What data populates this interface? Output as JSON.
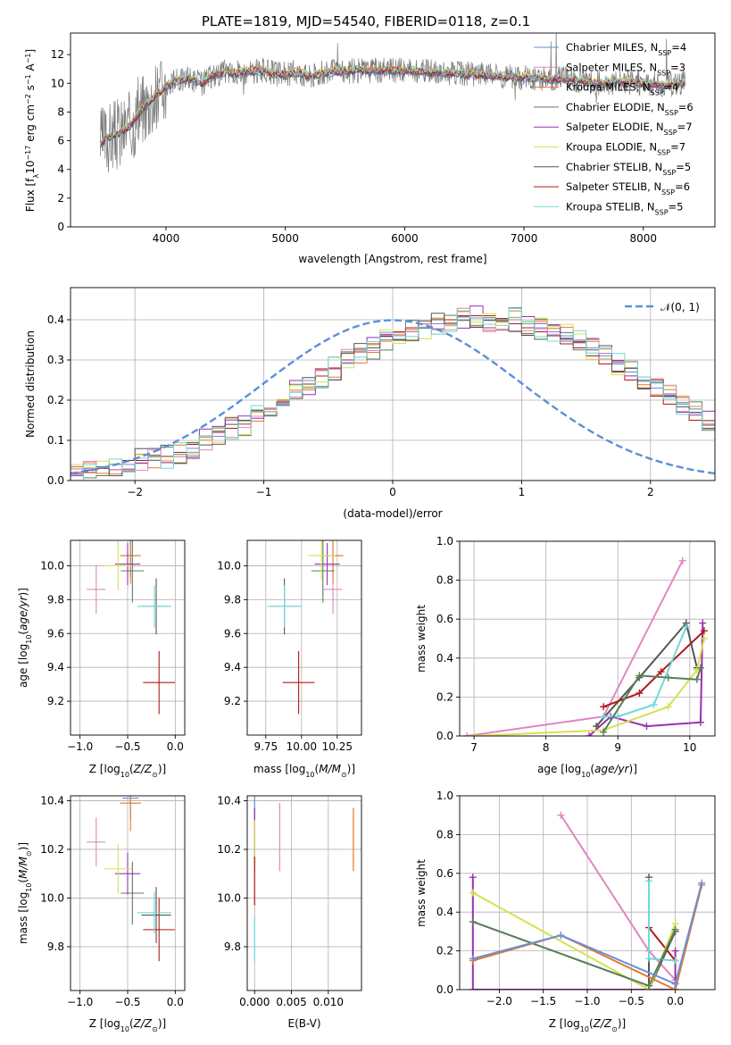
{
  "chart_data": [
    {
      "type": "line",
      "title": "PLATE=1819, MJD=54540, FIBERID=0118, z=0.1",
      "xlabel": "wavelength [Angstrom, rest frame]",
      "ylabel": "Flux [f_λ 10^-17 erg cm^-2 s^-1 A^-1]",
      "xlim": [
        3200,
        8600
      ],
      "ylim": [
        0,
        13.5
      ],
      "xticks": [
        4000,
        5000,
        6000,
        7000,
        8000
      ],
      "yticks": [
        0,
        2,
        4,
        6,
        8,
        10,
        12
      ],
      "legend_position": "right",
      "series": [
        {
          "name": "Chabrier MILES, N_SSP=4",
          "color": "#6a8fd8"
        },
        {
          "name": "Salpeter MILES, N_SSP=3",
          "color": "#e088c0"
        },
        {
          "name": "Kroupa MILES, N_SSP=4",
          "color": "#e07a2a"
        },
        {
          "name": "Chabrier ELODIE, N_SSP=6",
          "color": "#5a7d5a"
        },
        {
          "name": "Salpeter ELODIE, N_SSP=7",
          "color": "#9b2fb0"
        },
        {
          "name": "Kroupa ELODIE, N_SSP=7",
          "color": "#d8e050"
        },
        {
          "name": "Chabrier STELIB, N_SSP=5",
          "color": "#555555"
        },
        {
          "name": "Salpeter STELIB, N_SSP=6",
          "color": "#b01818"
        },
        {
          "name": "Kroupa STELIB, N_SSP=5",
          "color": "#70d8d8"
        }
      ],
      "spectrum_model": [
        [
          3450,
          5.8
        ],
        [
          3500,
          6.2
        ],
        [
          3600,
          6.5
        ],
        [
          3700,
          7.0
        ],
        [
          3800,
          8.3
        ],
        [
          3900,
          9.0
        ],
        [
          4000,
          9.8
        ],
        [
          4100,
          10.2
        ],
        [
          4200,
          10.4
        ],
        [
          4300,
          10.0
        ],
        [
          4400,
          10.6
        ],
        [
          4500,
          10.8
        ],
        [
          4600,
          10.7
        ],
        [
          4700,
          10.8
        ],
        [
          4800,
          10.9
        ],
        [
          4900,
          10.7
        ],
        [
          5000,
          10.6
        ],
        [
          5100,
          10.8
        ],
        [
          5200,
          10.5
        ],
        [
          5300,
          10.7
        ],
        [
          5400,
          10.8
        ],
        [
          5500,
          10.8
        ],
        [
          5600,
          10.9
        ],
        [
          5800,
          10.9
        ],
        [
          6000,
          10.9
        ],
        [
          6200,
          10.8
        ],
        [
          6400,
          10.7
        ],
        [
          6600,
          10.6
        ],
        [
          6800,
          10.5
        ],
        [
          7000,
          10.4
        ],
        [
          7200,
          10.3
        ],
        [
          7400,
          10.3
        ],
        [
          7600,
          10.0
        ],
        [
          7800,
          10.1
        ],
        [
          8000,
          10.0
        ],
        [
          8200,
          9.9
        ],
        [
          8350,
          10.0
        ]
      ]
    },
    {
      "type": "bar",
      "xlabel": "(data-model)/error",
      "ylabel": "Normed distribution",
      "xlim": [
        -2.5,
        2.5
      ],
      "ylim": [
        0,
        0.48
      ],
      "xticks": [
        -2,
        -1,
        0,
        1,
        2
      ],
      "yticks": [
        0.0,
        0.1,
        0.2,
        0.3,
        0.4
      ],
      "grid": true,
      "legend_position": "top-right",
      "legend": "𝒩(0, 1)",
      "reference_curve": "normal(0,1)",
      "bin_width": 0.1,
      "series": [
        {
          "color": "#6a8fd8",
          "values": [
            0.02,
            0.02,
            0.03,
            0.04,
            0.04,
            0.05,
            0.05,
            0.06,
            0.07,
            0.08,
            0.1,
            0.11,
            0.13,
            0.14,
            0.16,
            0.18,
            0.2,
            0.22,
            0.24,
            0.26,
            0.28,
            0.3,
            0.32,
            0.33,
            0.35,
            0.36,
            0.37,
            0.38,
            0.39,
            0.4,
            0.4,
            0.41,
            0.4,
            0.4,
            0.4,
            0.39,
            0.38,
            0.37,
            0.36,
            0.35,
            0.33,
            0.31,
            0.29,
            0.27,
            0.25,
            0.23,
            0.21,
            0.19,
            0.17,
            0.15
          ]
        },
        {
          "color": "#b01818",
          "values": [
            0.02,
            0.02,
            0.03,
            0.04,
            0.05,
            0.05,
            0.06,
            0.06,
            0.07,
            0.09,
            0.1,
            0.12,
            0.13,
            0.15,
            0.17,
            0.18,
            0.2,
            0.22,
            0.24,
            0.26,
            0.28,
            0.3,
            0.32,
            0.34,
            0.36,
            0.37,
            0.38,
            0.39,
            0.4,
            0.4,
            0.41,
            0.41,
            0.41,
            0.4,
            0.39,
            0.38,
            0.37,
            0.36,
            0.34,
            0.33,
            0.31,
            0.29,
            0.27,
            0.25,
            0.23,
            0.21,
            0.19,
            0.17,
            0.15,
            0.13
          ]
        }
      ]
    },
    {
      "type": "scatter",
      "xlabel": "Z [log10(Z/Z⊙)]",
      "ylabel": "age  [log10(age/yr)]",
      "xlim": [
        -1.1,
        0.1
      ],
      "ylim": [
        9.0,
        10.15
      ],
      "xticks": [
        -1.0,
        -0.5,
        0.0
      ],
      "yticks": [
        9.2,
        9.4,
        9.6,
        9.8,
        10.0
      ],
      "grid": true,
      "points": [
        {
          "color": "#6a8fd8",
          "x": -0.47,
          "y": 10.06
        },
        {
          "color": "#e088c0",
          "x": -0.83,
          "y": 9.86
        },
        {
          "color": "#e07a2a",
          "x": -0.47,
          "y": 10.06
        },
        {
          "color": "#5a7d5a",
          "x": -0.45,
          "y": 9.97
        },
        {
          "color": "#9b2fb0",
          "x": -0.5,
          "y": 10.01
        },
        {
          "color": "#d8e050",
          "x": -0.6,
          "y": 10.0
        },
        {
          "color": "#555555",
          "x": -0.2,
          "y": 9.76
        },
        {
          "color": "#b01818",
          "x": -0.17,
          "y": 9.31
        },
        {
          "color": "#70d8d8",
          "x": -0.22,
          "y": 9.76
        }
      ]
    },
    {
      "type": "scatter",
      "xlabel": "mass [log10(M/M⊙)]",
      "xlim": [
        9.62,
        10.42
      ],
      "ylim": [
        9.0,
        10.15
      ],
      "xticks": [
        9.75,
        10.0,
        10.25
      ],
      "yticks": [
        9.2,
        9.4,
        9.6,
        9.8,
        10.0
      ],
      "grid": true,
      "points": [
        {
          "color": "#6a8fd8",
          "x": 10.22,
          "y": 10.06
        },
        {
          "color": "#e088c0",
          "x": 10.22,
          "y": 9.86
        },
        {
          "color": "#e07a2a",
          "x": 10.22,
          "y": 10.06
        },
        {
          "color": "#5a7d5a",
          "x": 10.15,
          "y": 9.97
        },
        {
          "color": "#9b2fb0",
          "x": 10.18,
          "y": 10.01
        },
        {
          "color": "#d8e050",
          "x": 10.14,
          "y": 10.06
        },
        {
          "color": "#555555",
          "x": 9.88,
          "y": 9.76
        },
        {
          "color": "#b01818",
          "x": 9.98,
          "y": 9.31
        },
        {
          "color": "#70d8d8",
          "x": 9.88,
          "y": 9.76
        }
      ]
    },
    {
      "type": "line",
      "xlabel": "age  [log10(age/yr)]",
      "ylabel": "mass weight",
      "xlim": [
        6.8,
        10.35
      ],
      "ylim": [
        0,
        1.0
      ],
      "xticks": [
        7,
        8,
        9,
        10
      ],
      "yticks": [
        0.0,
        0.2,
        0.4,
        0.6,
        0.8,
        1.0
      ],
      "grid": true,
      "series": [
        {
          "color": "#e088c0",
          "points": [
            [
              6.9,
              0.0
            ],
            [
              8.8,
              0.1
            ],
            [
              9.9,
              0.9
            ]
          ]
        },
        {
          "color": "#555555",
          "points": [
            [
              8.7,
              0.05
            ],
            [
              9.3,
              0.3
            ],
            [
              9.95,
              0.58
            ],
            [
              10.1,
              0.35
            ]
          ]
        },
        {
          "color": "#9b2fb0",
          "points": [
            [
              8.6,
              0.0
            ],
            [
              8.9,
              0.1
            ],
            [
              9.4,
              0.05
            ],
            [
              10.15,
              0.07
            ],
            [
              10.18,
              0.58
            ]
          ]
        },
        {
          "color": "#b01818",
          "points": [
            [
              8.8,
              0.15
            ],
            [
              9.3,
              0.22
            ],
            [
              9.6,
              0.33
            ],
            [
              10.2,
              0.54
            ]
          ]
        },
        {
          "color": "#70d8d8",
          "points": [
            [
              8.8,
              0.1
            ],
            [
              9.0,
              0.1
            ],
            [
              9.5,
              0.16
            ],
            [
              9.95,
              0.56
            ]
          ]
        },
        {
          "color": "#d8e050",
          "points": [
            [
              7.0,
              0.0
            ],
            [
              8.8,
              0.03
            ],
            [
              9.7,
              0.15
            ],
            [
              10.1,
              0.34
            ],
            [
              10.2,
              0.5
            ]
          ]
        },
        {
          "color": "#5a7d5a",
          "points": [
            [
              8.8,
              0.02
            ],
            [
              9.3,
              0.31
            ],
            [
              9.7,
              0.3
            ],
            [
              10.1,
              0.29
            ],
            [
              10.15,
              0.35
            ]
          ]
        }
      ]
    },
    {
      "type": "scatter",
      "xlabel": "Z [log10(Z/Z⊙)]",
      "ylabel": "mass [log10(M/M⊙)]",
      "xlim": [
        -1.1,
        0.1
      ],
      "ylim": [
        9.62,
        10.42
      ],
      "xticks": [
        -1.0,
        -0.5,
        0.0
      ],
      "yticks": [
        9.8,
        10.0,
        10.2,
        10.4
      ],
      "grid": true,
      "points": [
        {
          "color": "#6a8fd8",
          "x": -0.47,
          "y": 10.41
        },
        {
          "color": "#e088c0",
          "x": -0.83,
          "y": 10.23
        },
        {
          "color": "#e07a2a",
          "x": -0.47,
          "y": 10.39
        },
        {
          "color": "#5a7d5a",
          "x": -0.45,
          "y": 10.02
        },
        {
          "color": "#9b2fb0",
          "x": -0.5,
          "y": 10.1
        },
        {
          "color": "#d8e050",
          "x": -0.6,
          "y": 10.12
        },
        {
          "color": "#555555",
          "x": -0.2,
          "y": 9.93
        },
        {
          "color": "#b01818",
          "x": -0.17,
          "y": 9.87
        },
        {
          "color": "#70d8d8",
          "x": -0.22,
          "y": 9.94
        }
      ]
    },
    {
      "type": "scatter",
      "xlabel": "E(B-V)",
      "xlim": [
        -0.001,
        0.0145
      ],
      "ylim": [
        9.62,
        10.42
      ],
      "xticks": [
        0.0,
        0.005,
        0.01
      ],
      "yticks": [
        9.8,
        10.0,
        10.2,
        10.4
      ],
      "grid": true,
      "points": [
        {
          "color": "#6a8fd8",
          "x": 0.0,
          "y": 10.3
        },
        {
          "color": "#e088c0",
          "x": 0.0034,
          "y": 10.27
        },
        {
          "color": "#e07a2a",
          "x": 0.0134,
          "y": 10.25
        },
        {
          "color": "#9b2fb0",
          "x": 0.0,
          "y": 10.25
        },
        {
          "color": "#d8e050",
          "x": 0.0,
          "y": 10.2
        },
        {
          "color": "#b01818",
          "x": 0.0,
          "y": 10.05
        },
        {
          "color": "#70d8d8",
          "x": 0.0,
          "y": 9.8
        }
      ]
    },
    {
      "type": "line",
      "xlabel": "Z [log10(Z/Z⊙)]",
      "ylabel": "mass weight",
      "xlim": [
        -2.45,
        0.45
      ],
      "ylim": [
        0,
        1.0
      ],
      "xticks": [
        -2.0,
        -1.5,
        -1.0,
        -0.5,
        0.0
      ],
      "yticks": [
        0.0,
        0.2,
        0.4,
        0.6,
        0.8,
        1.0
      ],
      "grid": true,
      "series": [
        {
          "color": "#e088c0",
          "points": [
            [
              -1.3,
              0.9
            ],
            [
              -0.3,
              0.2
            ],
            [
              0.0,
              0.05
            ]
          ]
        },
        {
          "color": "#555555",
          "points": [
            [
              -0.3,
              0.58
            ],
            [
              -0.3,
              0.0
            ],
            [
              0.0,
              0.3
            ]
          ]
        },
        {
          "color": "#9b2fb0",
          "points": [
            [
              -2.3,
              0.58
            ],
            [
              -2.3,
              0.0
            ],
            [
              0.0,
              0.0
            ],
            [
              0.0,
              0.2
            ]
          ]
        },
        {
          "color": "#b01818",
          "points": [
            [
              -0.3,
              0.32
            ],
            [
              0.0,
              0.15
            ]
          ]
        },
        {
          "color": "#70d8d8",
          "points": [
            [
              -0.3,
              0.56
            ],
            [
              -0.3,
              0.16
            ],
            [
              0.0,
              0.15
            ]
          ]
        },
        {
          "color": "#d8e050",
          "points": [
            [
              -2.3,
              0.5
            ],
            [
              -0.3,
              0.0
            ],
            [
              0.0,
              0.34
            ]
          ]
        },
        {
          "color": "#5a7d5a",
          "points": [
            [
              -2.3,
              0.35
            ],
            [
              -0.3,
              0.02
            ],
            [
              0.0,
              0.31
            ]
          ]
        },
        {
          "color": "#e07a2a",
          "points": [
            [
              -2.3,
              0.15
            ],
            [
              -1.3,
              0.28
            ],
            [
              0.0,
              0.0
            ],
            [
              0.3,
              0.54
            ]
          ]
        },
        {
          "color": "#6a8fd8",
          "points": [
            [
              -2.3,
              0.16
            ],
            [
              -1.3,
              0.28
            ],
            [
              0.0,
              0.03
            ],
            [
              0.3,
              0.55
            ]
          ]
        }
      ]
    }
  ]
}
